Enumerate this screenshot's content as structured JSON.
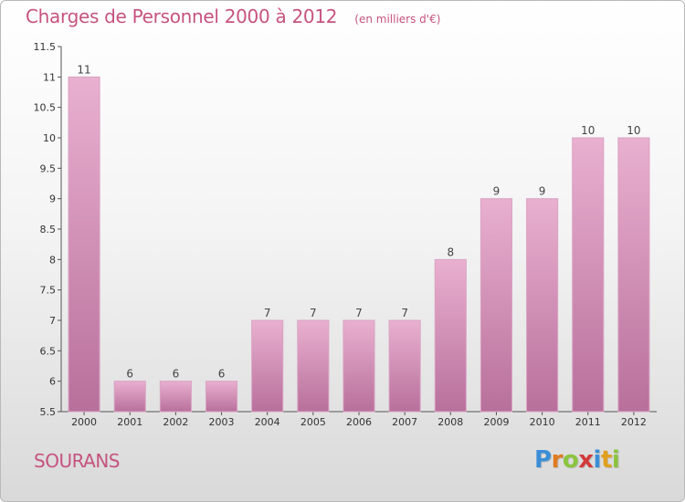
{
  "header": {
    "title": "Charges de Personnel 2000 à 2012",
    "unit": "(en milliers d'€)"
  },
  "commune": "SOURANS",
  "logo": {
    "letters": [
      "P",
      "r",
      "o",
      "x",
      "i",
      "t",
      "i"
    ],
    "colors": [
      "#3b8ed6",
      "#e07a20",
      "#8bc43f",
      "#d23c3c",
      "#3b8ed6",
      "#e0a020",
      "#8bc43f"
    ]
  },
  "colors": {
    "accent": "#c6537f",
    "bar_top": "#e9b0d0",
    "bar_bottom": "#b8709b"
  },
  "chart_data": {
    "type": "bar",
    "title": "Charges de Personnel 2000 à 2012",
    "subtitle": "(en milliers d'€)",
    "xlabel": "",
    "ylabel": "",
    "categories": [
      "2000",
      "2001",
      "2002",
      "2003",
      "2004",
      "2005",
      "2006",
      "2007",
      "2008",
      "2009",
      "2010",
      "2011",
      "2012"
    ],
    "values": [
      11,
      6,
      6,
      6,
      7,
      7,
      7,
      7,
      8,
      9,
      9,
      10,
      10
    ],
    "data_labels": [
      "11",
      "6",
      "6",
      "6",
      "7",
      "7",
      "7",
      "7",
      "8",
      "9",
      "9",
      "10",
      "10"
    ],
    "ylim": [
      5.5,
      11.5
    ],
    "yticks": [
      5.5,
      6,
      6.5,
      7,
      7.5,
      8,
      8.5,
      9,
      9.5,
      10,
      10.5,
      11,
      11.5
    ],
    "ytick_labels": [
      "5.5",
      "6",
      "6.5",
      "7",
      "7.5",
      "8",
      "8.5",
      "9",
      "9.5",
      "10",
      "10.5",
      "11",
      "11.5"
    ],
    "grid": false,
    "legend": "none"
  }
}
